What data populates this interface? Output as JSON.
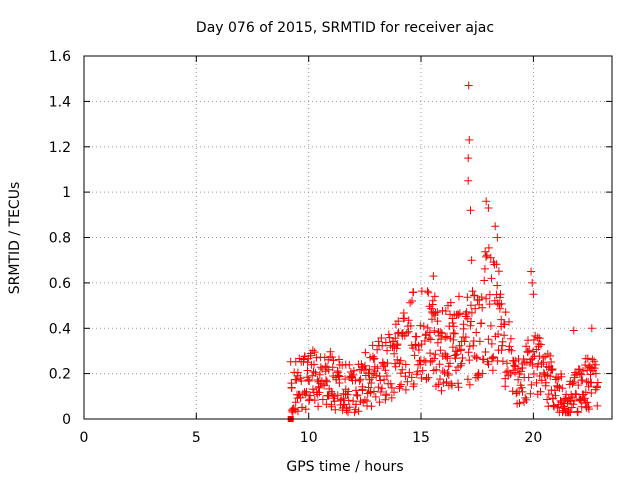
{
  "chart_data": {
    "type": "scatter",
    "title": "Day 076 of 2015, SRMTID for receiver ajac",
    "xlabel": "GPS time / hours",
    "ylabel": "SRMTID / TECUs",
    "xlim": [
      0,
      23.5
    ],
    "ylim": [
      0,
      1.6
    ],
    "xticks": [
      0,
      5,
      10,
      15,
      20
    ],
    "yticks": [
      0,
      0.2,
      0.4,
      0.6,
      0.8,
      1,
      1.2,
      1.4,
      1.6
    ],
    "xtick_labels": [
      "0",
      "5",
      "10",
      "15",
      "20"
    ],
    "ytick_labels": [
      "0",
      "0.2",
      "0.4",
      "0.6",
      "0.8",
      "1",
      "1.2",
      "1.4",
      "1.6"
    ],
    "grid": true,
    "marker": "plus",
    "color": "#ff0000",
    "series": [
      {
        "name": "SRMTID",
        "envelope": {
          "x": [
            9.2,
            9.5,
            10.0,
            10.5,
            11.0,
            11.5,
            12.0,
            12.5,
            13.0,
            13.5,
            14.0,
            14.5,
            15.0,
            15.5,
            16.0,
            16.5,
            17.0,
            17.5,
            18.0,
            18.5,
            19.0,
            19.5,
            20.0,
            20.5,
            21.0,
            21.5,
            22.0,
            22.5,
            22.9
          ],
          "y": [
            0.14,
            0.15,
            0.17,
            0.19,
            0.17,
            0.14,
            0.13,
            0.17,
            0.2,
            0.24,
            0.27,
            0.34,
            0.38,
            0.36,
            0.3,
            0.35,
            0.33,
            0.38,
            0.52,
            0.42,
            0.25,
            0.16,
            0.25,
            0.2,
            0.13,
            0.08,
            0.12,
            0.17,
            0.12
          ]
        },
        "peaks": [
          {
            "x": 17.12,
            "y": 1.47
          },
          {
            "x": 17.15,
            "y": 1.23
          },
          {
            "x": 17.1,
            "y": 1.15
          },
          {
            "x": 17.1,
            "y": 1.05
          },
          {
            "x": 17.2,
            "y": 0.92
          },
          {
            "x": 17.9,
            "y": 0.96
          },
          {
            "x": 18.0,
            "y": 0.93
          },
          {
            "x": 18.3,
            "y": 0.85
          },
          {
            "x": 18.4,
            "y": 0.8
          },
          {
            "x": 17.25,
            "y": 0.7
          },
          {
            "x": 15.55,
            "y": 0.63
          },
          {
            "x": 19.9,
            "y": 0.65
          },
          {
            "x": 19.95,
            "y": 0.6
          },
          {
            "x": 20.0,
            "y": 0.55
          },
          {
            "x": 14.6,
            "y": 0.52
          },
          {
            "x": 16.2,
            "y": 0.5
          },
          {
            "x": 22.6,
            "y": 0.4
          },
          {
            "x": 21.8,
            "y": 0.39
          }
        ],
        "outlier": {
          "x": 9.2,
          "y": 0.0
        }
      }
    ]
  }
}
